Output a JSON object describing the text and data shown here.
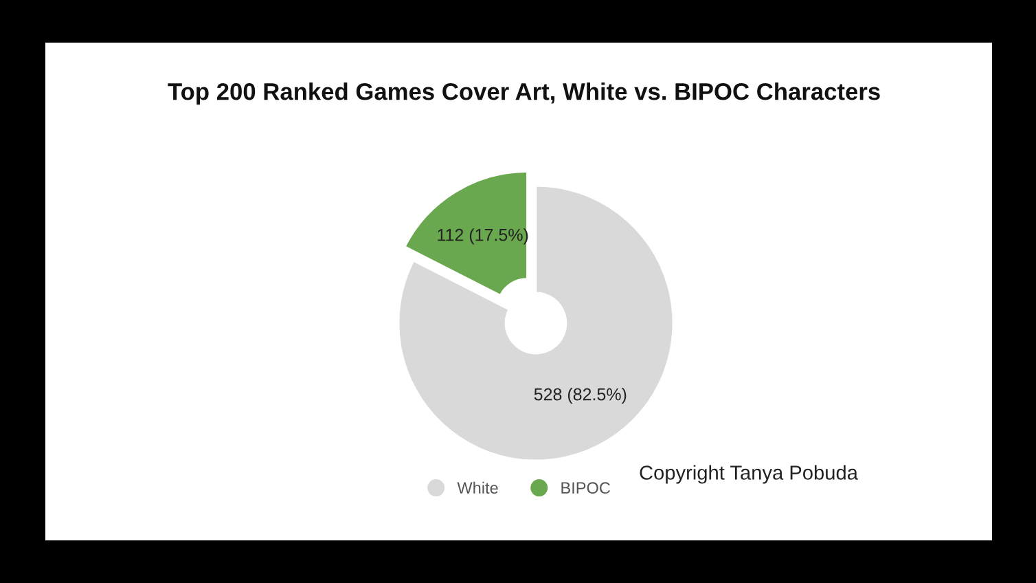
{
  "chart_data": {
    "type": "donut",
    "title": "Top 200 Ranked Games Cover Art, White vs. BIPOC Characters",
    "categories": [
      "White",
      "BIPOC"
    ],
    "values": [
      528,
      112
    ],
    "value_labels": [
      "528 (82.5%)",
      "112 (17.5%)"
    ],
    "colors": [
      "#d9d9d9",
      "#6aa84f"
    ],
    "legend": "bottom",
    "annotations": [
      "Copyright Tanya Pobuda"
    ]
  }
}
